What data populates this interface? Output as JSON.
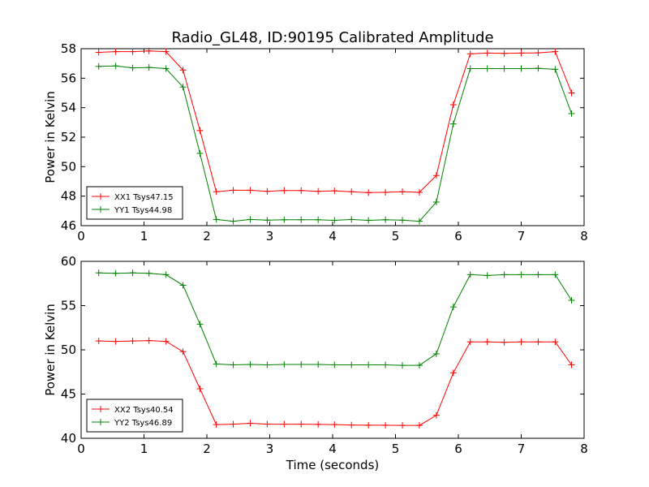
{
  "title": "Radio_GL48, ID:90195 Calibrated Amplitude",
  "xlabel": "Time (seconds)",
  "colors": {
    "xx": "#ff0000",
    "yy": "#008000"
  },
  "chart_data": [
    {
      "type": "line",
      "ylabel": "Power in Kelvin",
      "xlim": [
        0,
        8
      ],
      "ylim": [
        46,
        58
      ],
      "xticks": [
        "0",
        "1",
        "2",
        "3",
        "4",
        "5",
        "6",
        "7",
        "8"
      ],
      "yticks": [
        "46",
        "48",
        "50",
        "52",
        "54",
        "56",
        "58"
      ],
      "legend_position": "lower-left",
      "x": [
        0.28,
        0.55,
        0.82,
        1.08,
        1.35,
        1.62,
        1.89,
        2.15,
        2.42,
        2.69,
        2.96,
        3.23,
        3.5,
        3.77,
        4.03,
        4.3,
        4.57,
        4.84,
        5.11,
        5.38,
        5.65,
        5.92,
        6.19,
        6.46,
        6.73,
        7.0,
        7.27,
        7.54,
        7.8
      ],
      "series": [
        {
          "name": "XX1 Tsys47.15",
          "color": "#ff0000",
          "values": [
            57.75,
            57.8,
            57.8,
            57.85,
            57.8,
            56.55,
            52.45,
            48.3,
            48.4,
            48.4,
            48.33,
            48.38,
            48.38,
            48.33,
            48.36,
            48.3,
            48.24,
            48.26,
            48.3,
            48.26,
            49.4,
            54.2,
            57.65,
            57.7,
            57.68,
            57.7,
            57.72,
            57.8,
            55.0
          ]
        },
        {
          "name": "YY1 Tsys44.98",
          "color": "#008000",
          "values": [
            56.8,
            56.83,
            56.7,
            56.73,
            56.65,
            55.4,
            50.9,
            46.42,
            46.3,
            46.42,
            46.37,
            46.4,
            46.4,
            46.4,
            46.36,
            46.42,
            46.36,
            46.4,
            46.37,
            46.3,
            47.6,
            52.9,
            56.65,
            56.65,
            56.65,
            56.65,
            56.67,
            56.6,
            53.6
          ]
        }
      ]
    },
    {
      "type": "line",
      "ylabel": "Power in Kelvin",
      "xlabel": "Time (seconds)",
      "xlim": [
        0,
        8
      ],
      "ylim": [
        40,
        60
      ],
      "xticks": [
        "0",
        "1",
        "2",
        "3",
        "4",
        "5",
        "6",
        "7",
        "8"
      ],
      "yticks": [
        "40",
        "45",
        "50",
        "55",
        "60"
      ],
      "legend_position": "lower-left",
      "x": [
        0.28,
        0.55,
        0.82,
        1.08,
        1.35,
        1.62,
        1.89,
        2.15,
        2.42,
        2.69,
        2.96,
        3.23,
        3.5,
        3.77,
        4.03,
        4.3,
        4.57,
        4.84,
        5.11,
        5.38,
        5.65,
        5.92,
        6.19,
        6.46,
        6.73,
        7.0,
        7.27,
        7.54,
        7.8
      ],
      "series": [
        {
          "name": "XX2 Tsys40.54",
          "color": "#ff0000",
          "values": [
            51.0,
            50.95,
            51.0,
            51.05,
            50.95,
            49.8,
            45.6,
            41.55,
            41.6,
            41.7,
            41.6,
            41.6,
            41.6,
            41.57,
            41.55,
            41.5,
            41.48,
            41.48,
            41.46,
            41.46,
            42.6,
            47.4,
            50.9,
            50.9,
            50.85,
            50.9,
            50.9,
            50.9,
            48.3
          ]
        },
        {
          "name": "YY2 Tsys46.89",
          "color": "#008000",
          "values": [
            58.7,
            58.65,
            58.7,
            58.65,
            58.5,
            57.3,
            52.9,
            48.4,
            48.3,
            48.35,
            48.3,
            48.35,
            48.35,
            48.35,
            48.3,
            48.3,
            48.3,
            48.3,
            48.25,
            48.25,
            49.55,
            54.85,
            58.5,
            58.4,
            58.5,
            58.5,
            58.5,
            58.5,
            55.6
          ]
        }
      ]
    }
  ]
}
